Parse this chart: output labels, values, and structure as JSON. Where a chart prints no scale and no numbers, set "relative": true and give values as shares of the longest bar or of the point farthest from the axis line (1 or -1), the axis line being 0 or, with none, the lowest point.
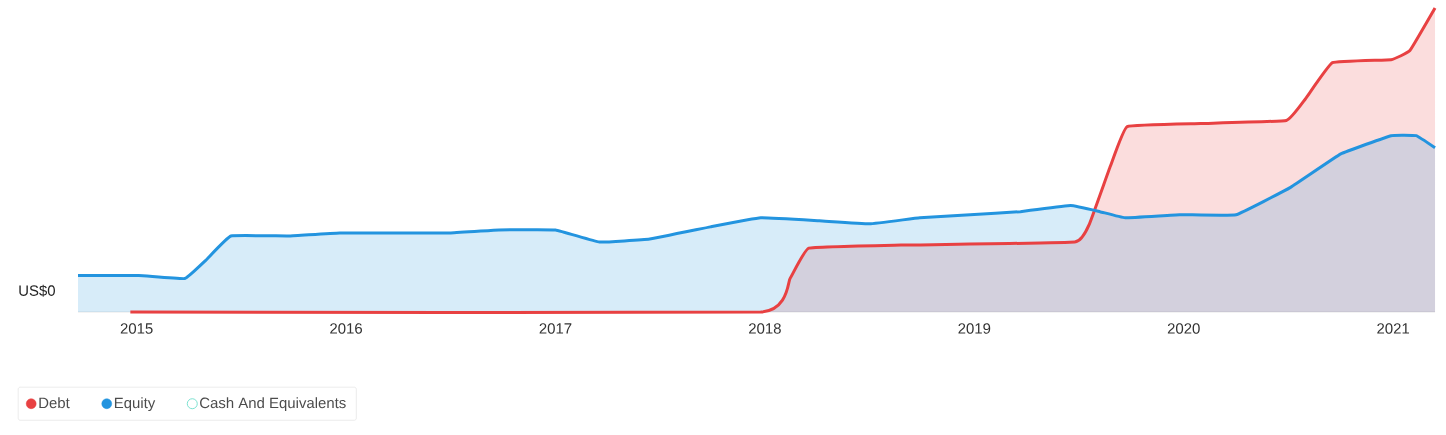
{
  "chart_data": {
    "type": "area",
    "relative": true,
    "xlim": [
      2014.72,
      2021.2
    ],
    "xticks": [
      2015,
      2016,
      2017,
      2018,
      2019,
      2020,
      2021
    ],
    "legend": "bottom",
    "annotations": [
      "US$0"
    ],
    "series": [
      {
        "name": "Debt",
        "color": "#e84142",
        "x": [
          2014.97,
          2017.98,
          2018.12,
          2018.21,
          2018.65,
          2019.48,
          2019.55,
          2019.65,
          2019.73,
          2020.08,
          2020.49,
          2020.58,
          2020.71,
          2020.99,
          2021.08,
          2021.2
        ],
        "values": [
          0,
          0,
          0.11,
          0.21,
          0.22,
          0.23,
          0.29,
          0.48,
          0.61,
          0.62,
          0.63,
          0.7,
          0.82,
          0.83,
          0.86,
          1
        ]
      },
      {
        "name": "Equity",
        "color": "#2394df",
        "x": [
          2014.72,
          2015.01,
          2015.23,
          2015.33,
          2015.45,
          2015.73,
          2015.97,
          2016.5,
          2016.73,
          2017.0,
          2017.21,
          2017.45,
          2017.74,
          2017.98,
          2018.26,
          2018.5,
          2018.74,
          2018.98,
          2019.22,
          2019.46,
          2019.6,
          2019.72,
          2019.98,
          2020.25,
          2020.51,
          2020.75,
          2020.99,
          2021.11,
          2021.2
        ],
        "values": [
          0.12,
          0.12,
          0.11,
          0.17,
          0.25,
          0.25,
          0.26,
          0.26,
          0.27,
          0.27,
          0.23,
          0.24,
          0.28,
          0.31,
          0.3,
          0.29,
          0.31,
          0.32,
          0.33,
          0.35,
          0.33,
          0.31,
          0.32,
          0.32,
          0.41,
          0.52,
          0.58,
          0.58,
          0.54
        ]
      },
      {
        "name": "Cash And Equivalents",
        "color": "#7de2d1"
      }
    ]
  }
}
